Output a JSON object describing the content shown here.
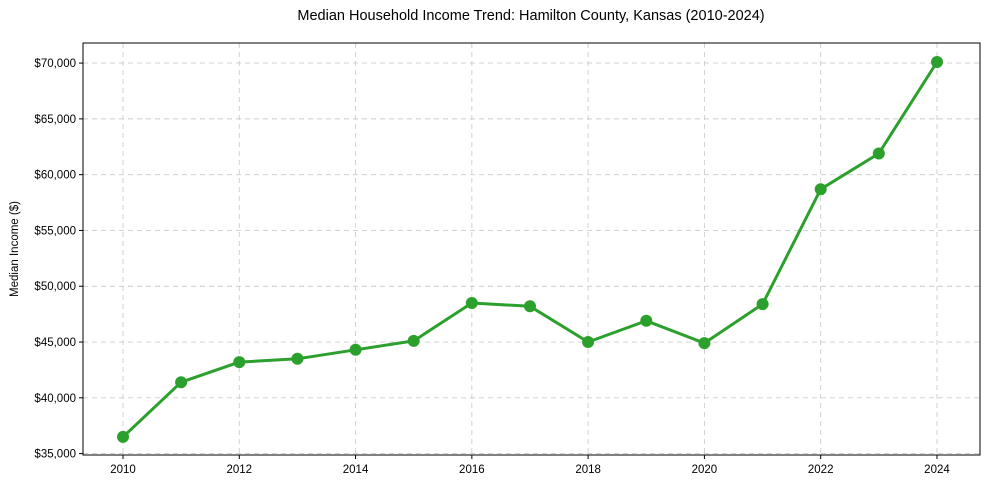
{
  "chart_data": {
    "type": "line",
    "title": "Median Household Income Trend: Hamilton County, Kansas (2010-2024)",
    "xlabel": "",
    "ylabel": "Median Income ($)",
    "x": [
      2010,
      2011,
      2012,
      2013,
      2014,
      2015,
      2016,
      2017,
      2018,
      2019,
      2020,
      2021,
      2022,
      2023,
      2024
    ],
    "series": [
      {
        "name": "Median Household Income",
        "values": [
          36500,
          41400,
          43200,
          43500,
          44300,
          45100,
          48500,
          48200,
          45000,
          46900,
          44900,
          48400,
          58700,
          61900,
          70100
        ]
      }
    ],
    "x_ticks": [
      2010,
      2012,
      2014,
      2016,
      2018,
      2020,
      2022,
      2024
    ],
    "x_tick_labels": [
      "2010",
      "2012",
      "2014",
      "2016",
      "2018",
      "2020",
      "2022",
      "2024"
    ],
    "y_ticks": [
      35000,
      40000,
      45000,
      50000,
      55000,
      60000,
      65000,
      70000
    ],
    "y_tick_labels": [
      "$35,000",
      "$40,000",
      "$45,000",
      "$50,000",
      "$55,000",
      "$60,000",
      "$65,000",
      "$70,000"
    ],
    "xlim": [
      2009.312,
      2024.74
    ],
    "ylim": [
      34875,
      71800
    ],
    "grid": true,
    "grid_style": "dashed",
    "legend": "none",
    "line_color": "#2ca02c",
    "marker": "circle",
    "marker_size": 6,
    "line_width": 3,
    "grid_color": "#cccccc",
    "spine_color": "#000000",
    "background_color": "#ffffff"
  }
}
